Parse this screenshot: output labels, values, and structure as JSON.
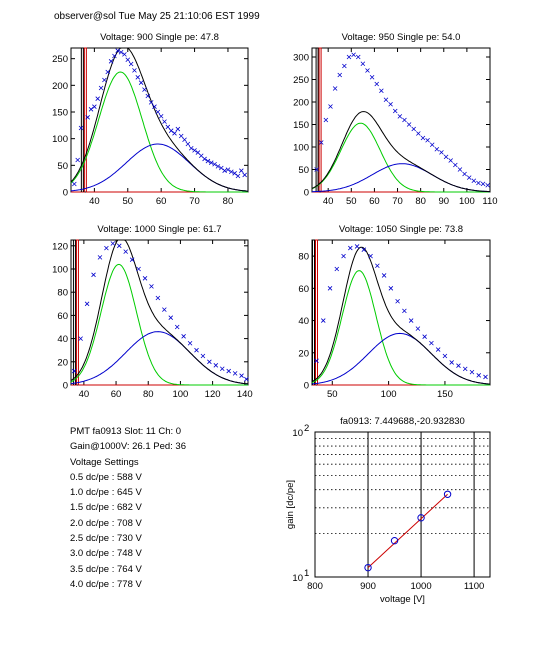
{
  "header": "observer@sol  Tue May 25 21:10:06 EST 1999",
  "colors": {
    "data": "#0000cc",
    "total": "#000000",
    "pe1": "#00cc00",
    "pe2": "#0000cc",
    "ped": "#cc0000",
    "fit": "#cc0000"
  },
  "chart_data": [
    {
      "type": "scatter",
      "title": "Voltage: 900 Single pe: 47.8",
      "xlim": [
        33,
        86
      ],
      "ylim": [
        0,
        270
      ],
      "xticks": [
        40,
        50,
        60,
        70,
        80
      ],
      "yticks": [
        0,
        50,
        100,
        150,
        200,
        250
      ],
      "series": [
        {
          "name": "",
          "role": "data",
          "x": [
            34,
            35,
            36,
            38,
            39,
            40,
            41,
            42,
            43,
            44,
            45,
            46,
            47,
            48,
            49,
            50,
            51,
            52,
            53,
            54,
            55,
            56,
            57,
            58,
            59,
            60,
            61,
            62,
            63,
            64,
            65,
            66,
            67,
            68,
            69,
            70,
            71,
            72,
            73,
            74,
            75,
            76,
            77,
            78,
            79,
            80,
            81,
            82,
            83,
            84,
            85
          ],
          "y": [
            15,
            60,
            120,
            140,
            155,
            160,
            175,
            195,
            210,
            225,
            245,
            255,
            265,
            262,
            258,
            248,
            240,
            228,
            215,
            205,
            192,
            180,
            168,
            160,
            150,
            142,
            132,
            122,
            115,
            110,
            118,
            105,
            98,
            90,
            82,
            78,
            74,
            68,
            62,
            58,
            55,
            52,
            48,
            45,
            40,
            42,
            38,
            35,
            30,
            40,
            32
          ]
        },
        {
          "name": "",
          "role": "single pe",
          "amplitude": 225,
          "mean": 47.8,
          "sigma": 6.5
        },
        {
          "name": "",
          "role": "double pe",
          "amplitude": 90,
          "mean": 59,
          "sigma": 9.5
        },
        {
          "name": "",
          "role": "total"
        },
        {
          "name": "",
          "role": "pedestal",
          "pedestal_x": 37.3
        }
      ]
    },
    {
      "type": "scatter",
      "title": "Voltage: 950 Single pe: 54.0",
      "xlim": [
        33,
        110
      ],
      "ylim": [
        0,
        320
      ],
      "xticks": [
        40,
        50,
        60,
        70,
        80,
        90,
        100,
        110
      ],
      "yticks": [
        0,
        50,
        100,
        150,
        200,
        250,
        300
      ],
      "series": [
        {
          "name": "",
          "role": "data",
          "x": [
            35,
            37,
            39,
            41,
            43,
            45,
            47,
            49,
            51,
            53,
            55,
            57,
            59,
            61,
            63,
            65,
            67,
            69,
            71,
            73,
            75,
            77,
            79,
            81,
            83,
            85,
            87,
            89,
            91,
            93,
            95,
            97,
            99,
            101,
            103,
            105,
            107,
            109
          ],
          "y": [
            50,
            110,
            160,
            190,
            230,
            260,
            280,
            300,
            305,
            300,
            285,
            270,
            255,
            240,
            225,
            205,
            195,
            180,
            168,
            160,
            150,
            140,
            130,
            120,
            115,
            105,
            95,
            88,
            78,
            70,
            60,
            50,
            40,
            32,
            25,
            20,
            18,
            15
          ]
        },
        {
          "name": "",
          "role": "single pe",
          "amplitude": 153,
          "mean": 54.0,
          "sigma": 8.5
        },
        {
          "name": "",
          "role": "double pe",
          "amplitude": 63,
          "mean": 72,
          "sigma": 13
        },
        {
          "name": "",
          "role": "total"
        },
        {
          "name": "",
          "role": "pedestal",
          "pedestal_x": 36.5
        }
      ]
    },
    {
      "type": "scatter",
      "title": "Voltage: 1000 Single pe: 61.7",
      "xlim": [
        32,
        142
      ],
      "ylim": [
        0,
        125
      ],
      "xticks": [
        40,
        60,
        80,
        100,
        120,
        140
      ],
      "yticks": [
        0,
        20,
        40,
        60,
        80,
        100,
        120
      ],
      "series": [
        {
          "name": "",
          "role": "data",
          "x": [
            34,
            38,
            42,
            46,
            50,
            54,
            58,
            62,
            66,
            70,
            74,
            78,
            82,
            86,
            90,
            94,
            98,
            102,
            106,
            110,
            114,
            118,
            122,
            126,
            130,
            134,
            138,
            141
          ],
          "y": [
            12,
            40,
            70,
            95,
            110,
            118,
            122,
            120,
            115,
            108,
            100,
            92,
            85,
            75,
            65,
            58,
            50,
            42,
            36,
            30,
            25,
            20,
            17,
            14,
            12,
            10,
            8,
            5
          ]
        },
        {
          "name": "",
          "role": "single pe",
          "amplitude": 104,
          "mean": 61.7,
          "sigma": 11
        },
        {
          "name": "",
          "role": "double pe",
          "amplitude": 46,
          "mean": 86,
          "sigma": 20
        },
        {
          "name": "",
          "role": "total"
        },
        {
          "name": "",
          "role": "pedestal",
          "pedestal_x": 36
        }
      ]
    },
    {
      "type": "scatter",
      "title": "Voltage: 1050 Single pe: 73.8",
      "xlim": [
        32,
        190
      ],
      "ylim": [
        0,
        90
      ],
      "xticks": [
        50,
        100,
        150
      ],
      "yticks": [
        0,
        20,
        40,
        60,
        80
      ],
      "series": [
        {
          "name": "",
          "role": "data",
          "x": [
            36,
            42,
            48,
            54,
            60,
            66,
            72,
            78,
            84,
            90,
            96,
            102,
            108,
            114,
            120,
            126,
            132,
            138,
            144,
            150,
            156,
            162,
            168,
            174,
            180,
            186
          ],
          "y": [
            15,
            40,
            60,
            72,
            80,
            85,
            86,
            84,
            80,
            74,
            68,
            60,
            52,
            46,
            40,
            35,
            30,
            26,
            22,
            18,
            14,
            12,
            10,
            8,
            6,
            5
          ]
        },
        {
          "name": "",
          "role": "single pe",
          "amplitude": 71,
          "mean": 73.8,
          "sigma": 15
        },
        {
          "name": "",
          "role": "double pe",
          "amplitude": 32,
          "mean": 110,
          "sigma": 28
        },
        {
          "name": "",
          "role": "total"
        },
        {
          "name": "",
          "role": "pedestal",
          "pedestal_x": 36
        }
      ]
    },
    {
      "type": "line",
      "title": "fa0913: 7.449688,-20.932830",
      "xlabel": "voltage [V]",
      "ylabel": "gain [dc/pe]",
      "xlim": [
        800,
        1130
      ],
      "ylim": [
        10,
        100
      ],
      "yscale": "log",
      "xticks": [
        800,
        900,
        1000,
        1100
      ],
      "yticks": [
        {
          "value": 10,
          "label": "10",
          "sup": "1"
        },
        {
          "value": 100,
          "label": "10",
          "sup": "2"
        }
      ],
      "grid": true,
      "series": [
        {
          "name": "",
          "role": "measured",
          "x": [
            900,
            950,
            1000,
            1050
          ],
          "y": [
            11.6,
            17.8,
            25.6,
            37.2
          ]
        },
        {
          "name": "",
          "role": "fit",
          "x": [
            900,
            1050
          ],
          "y": [
            11.6,
            37.2
          ]
        }
      ]
    }
  ],
  "info": {
    "pmt": "PMT fa0913 Slot: 11 Ch: 0",
    "gain": "Gain@1000V: 26.1 Ped: 36",
    "settings_title": "Voltage Settings",
    "settings": [
      "0.5 dc/pe : 588 V",
      "1.0 dc/pe : 645 V",
      "1.5 dc/pe : 682 V",
      "2.0 dc/pe : 708 V",
      "2.5 dc/pe : 730 V",
      "3.0 dc/pe : 748 V",
      "3.5 dc/pe : 764 V",
      "4.0 dc/pe : 778 V"
    ]
  }
}
